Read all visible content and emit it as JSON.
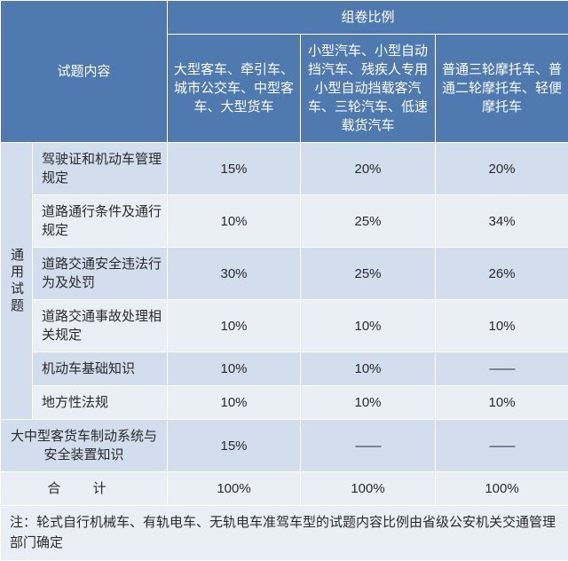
{
  "header": {
    "content_label": "试题内容",
    "ratio_label": "组卷比例",
    "col_a": "大型客车、牵引车、城市公交车、中型客车、大型货车",
    "col_b": "小型汽车、小型自动挡汽车、残疾人专用小型自动挡载客汽车、三轮汽车、低速载货汽车",
    "col_c": "普通三轮摩托车、普通二轮摩托车、轻便摩托车"
  },
  "category_label": "通用试题",
  "rows": [
    {
      "label": "驾驶证和机动车管理规定",
      "a": "15%",
      "b": "20%",
      "c": "20%"
    },
    {
      "label": "道路通行条件及通行规定",
      "a": "10%",
      "b": "25%",
      "c": "34%"
    },
    {
      "label": "道路交通安全违法行为及处罚",
      "a": "30%",
      "b": "25%",
      "c": "26%"
    },
    {
      "label": "道路交通事故处理相关规定",
      "a": "10%",
      "b": "10%",
      "c": "10%"
    },
    {
      "label": "机动车基础知识",
      "a": "10%",
      "b": "10%",
      "c": "——"
    },
    {
      "label": "地方性法规",
      "a": "10%",
      "b": "10%",
      "c": "10%"
    }
  ],
  "extra_row": {
    "label": "大中型客货车制动系统与安全装置知识",
    "a": "15%",
    "b": "——",
    "c": "——"
  },
  "total_row": {
    "label": "合 计",
    "a": "100%",
    "b": "100%",
    "c": "100%"
  },
  "footnote": "注：轮式自行机械车、有轨电车、无轨电车准驾车型的试题内容比例由省级公安机关交通管理部门确定",
  "colors": {
    "header_bg": "#4f7ab0",
    "row_odd_bg": "#d2dded",
    "row_even_bg": "#eaeff6",
    "border": "#ffffff",
    "text_dark": "#2a2a2a",
    "text_light": "#ffffff"
  }
}
